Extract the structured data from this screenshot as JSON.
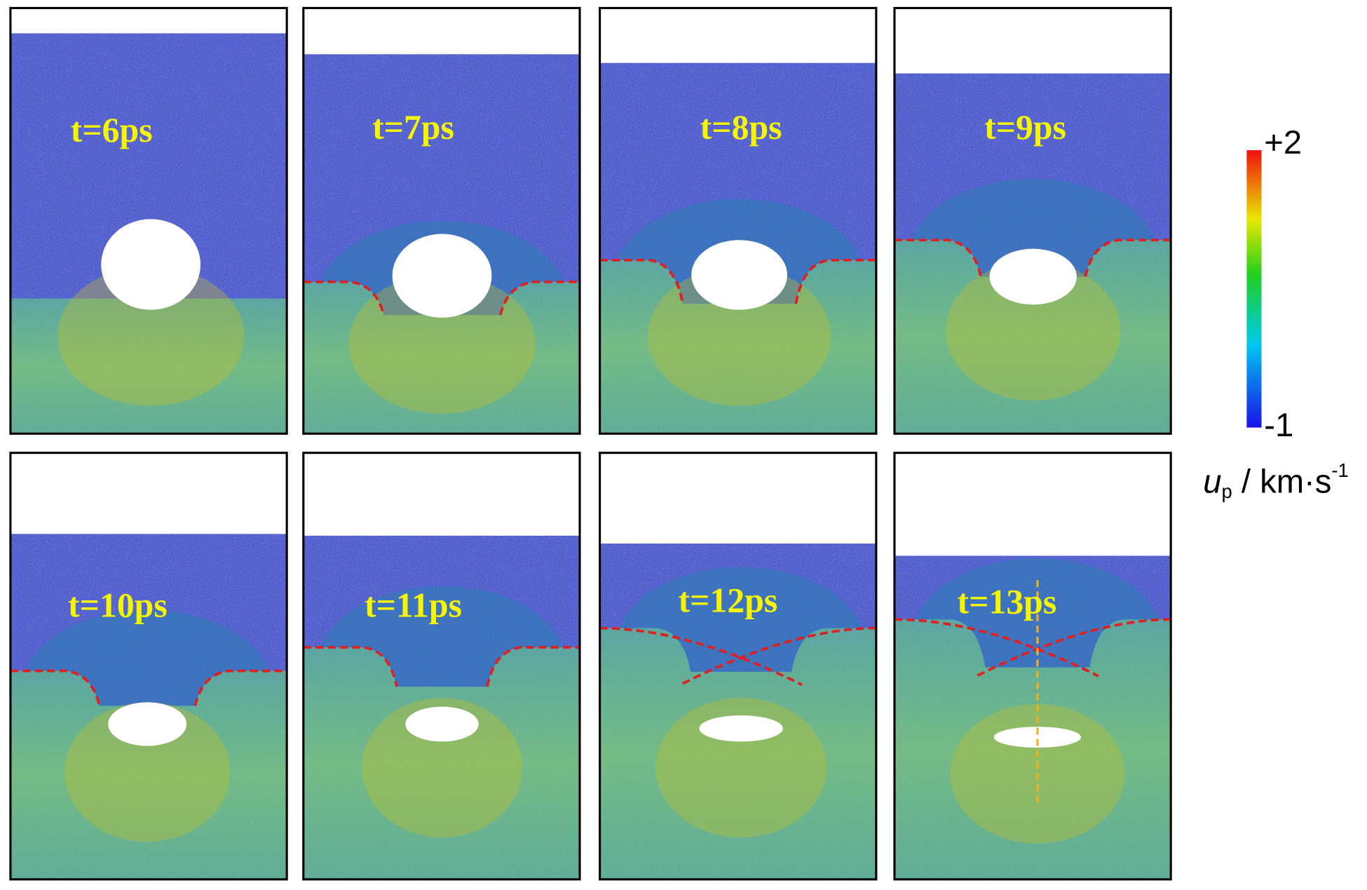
{
  "panels": [
    {
      "label": "t=6ps"
    },
    {
      "label": "t=7ps"
    },
    {
      "label": "t=8ps"
    },
    {
      "label": "t=9ps"
    },
    {
      "label": "t=10ps"
    },
    {
      "label": "t=11ps"
    },
    {
      "label": "t=12ps"
    },
    {
      "label": "t=13ps"
    }
  ],
  "colorbar": {
    "max_label": "+2",
    "min_label": "-1",
    "unit": {
      "symbol": "u",
      "subscript": "p",
      "text": " / km·s",
      "superscript": "-1"
    }
  }
}
